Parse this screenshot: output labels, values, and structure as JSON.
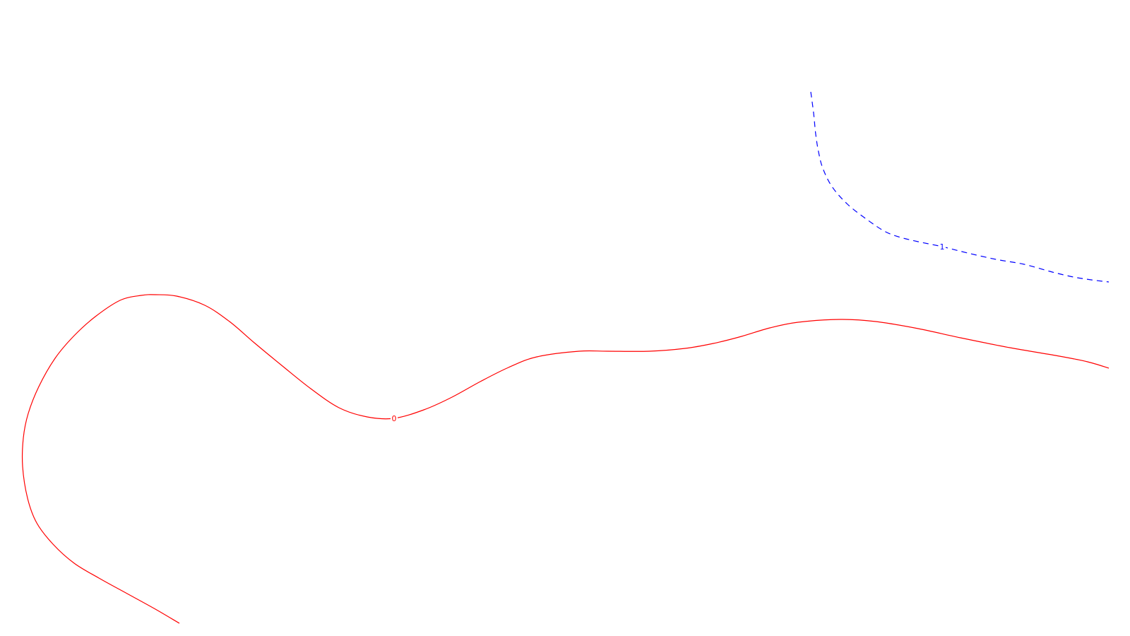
{
  "chart_data": {
    "type": "line",
    "title": "",
    "xlabel": "",
    "ylabel": "",
    "grid": false,
    "legend": "none",
    "series": [
      {
        "label": "0",
        "color": "#ff0000",
        "dash": "solid",
        "points": [
          [
            254,
            882
          ],
          [
            220,
            862
          ],
          [
            180,
            840
          ],
          [
            140,
            818
          ],
          [
            105,
            797
          ],
          [
            75,
            770
          ],
          [
            52,
            740
          ],
          [
            39,
            705
          ],
          [
            32,
            660
          ],
          [
            33,
            620
          ],
          [
            40,
            585
          ],
          [
            55,
            547
          ],
          [
            78,
            507
          ],
          [
            105,
            475
          ],
          [
            135,
            448
          ],
          [
            170,
            425
          ],
          [
            200,
            418
          ],
          [
            220,
            417
          ],
          [
            250,
            419
          ],
          [
            290,
            432
          ],
          [
            325,
            455
          ],
          [
            360,
            485
          ],
          [
            400,
            518
          ],
          [
            440,
            550
          ],
          [
            480,
            577
          ],
          [
            520,
            590
          ],
          [
            558,
            592
          ],
          [
            600,
            580
          ],
          [
            640,
            562
          ],
          [
            680,
            540
          ],
          [
            720,
            520
          ],
          [
            760,
            505
          ],
          [
            820,
            497
          ],
          [
            860,
            497
          ],
          [
            920,
            497
          ],
          [
            970,
            493
          ],
          [
            1010,
            486
          ],
          [
            1050,
            476
          ],
          [
            1090,
            464
          ],
          [
            1130,
            456
          ],
          [
            1190,
            452
          ],
          [
            1240,
            455
          ],
          [
            1300,
            465
          ],
          [
            1360,
            478
          ],
          [
            1430,
            492
          ],
          [
            1500,
            504
          ],
          [
            1540,
            512
          ],
          [
            1570,
            521
          ]
        ]
      },
      {
        "label": "1",
        "color": "#0000ff",
        "dash": "dashed",
        "points": [
          [
            1148,
            130
          ],
          [
            1152,
            160
          ],
          [
            1155,
            190
          ],
          [
            1159,
            215
          ],
          [
            1165,
            238
          ],
          [
            1178,
            264
          ],
          [
            1200,
            289
          ],
          [
            1228,
            311
          ],
          [
            1252,
            327
          ],
          [
            1272,
            335
          ],
          [
            1300,
            342
          ],
          [
            1334,
            349
          ],
          [
            1370,
            358
          ],
          [
            1410,
            367
          ],
          [
            1450,
            374
          ],
          [
            1490,
            385
          ],
          [
            1520,
            392
          ],
          [
            1545,
            396
          ],
          [
            1570,
            399
          ]
        ]
      }
    ]
  }
}
